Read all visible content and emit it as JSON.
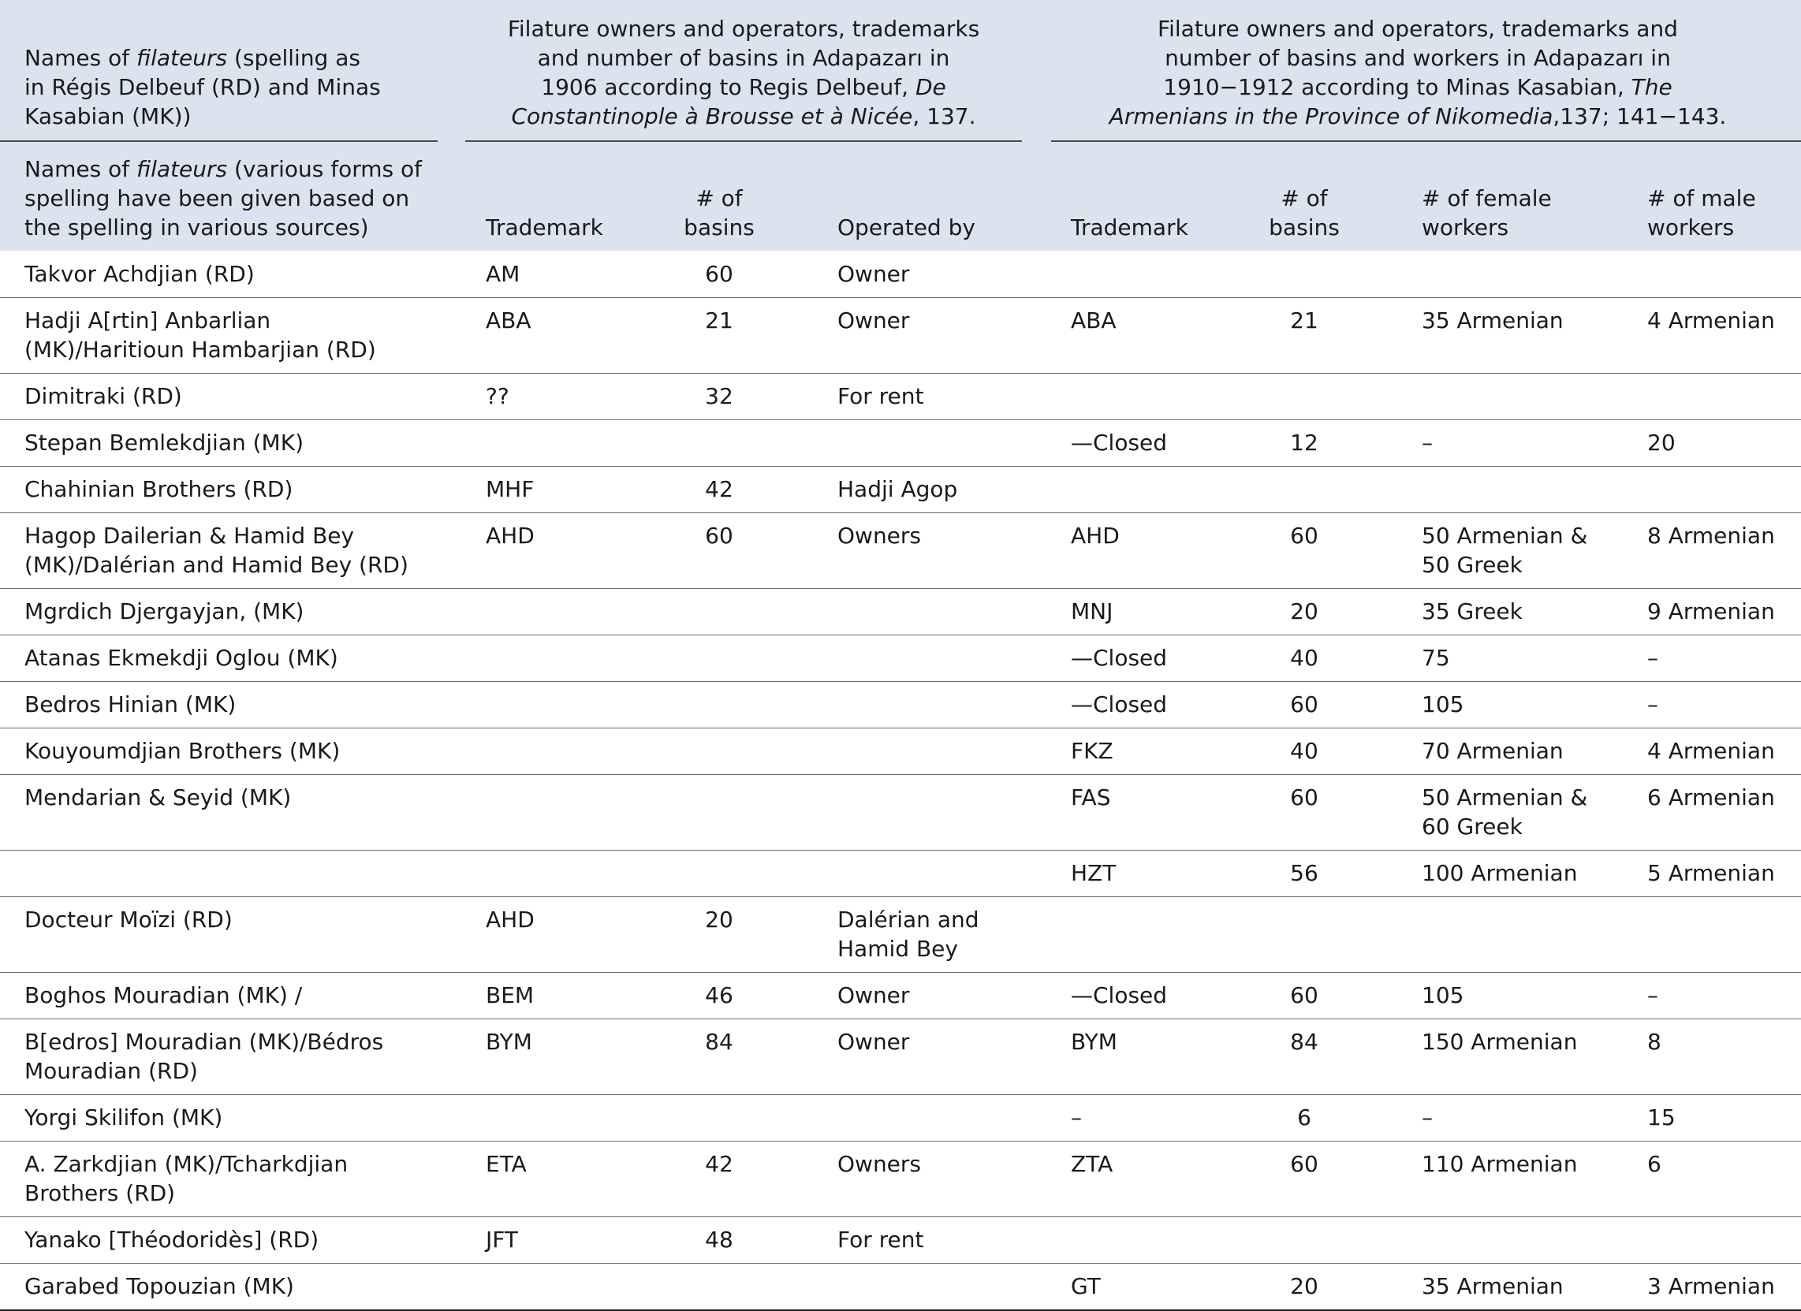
{
  "header": {
    "group1_line1_pre": "Names of ",
    "group1_line1_it": "filateurs",
    "group1_line1_post": " (spelling as",
    "group1_line2": "in Régis Delbeuf (RD) and Minas",
    "group1_line3": "Kasabian (MK))",
    "group2_line1": "Filature owners and operators, trademarks",
    "group2_line2": "and number of basins in Adapazarı in",
    "group2_line3_pre": "1906 according to Regis Delbeuf, ",
    "group2_line3_it": "De",
    "group2_line4_it": "Constantinople à Brousse et à Nicée",
    "group2_line4_post": ", 137.",
    "group3_line1": "Filature owners and operators, trademarks and",
    "group3_line2": "number of basins and workers in Adapazarı in",
    "group3_line3_pre": "1910−1912 according to Minas Kasabian, ",
    "group3_line3_it": "The",
    "group3_line4_it": "Armenians in the Province of Nikomedia",
    "group3_line4_post": ",137; 141−143.",
    "sub_name_line1_pre": "Names of ",
    "sub_name_line1_it": "filateurs",
    "sub_name_line1_post": " (various forms of",
    "sub_name_line2": "spelling have been given based on",
    "sub_name_line3": "the spelling in various sources)",
    "sub_trademark": "Trademark",
    "sub_basins_line1": "# of",
    "sub_basins_line2": "basins",
    "sub_operated": "Operated by",
    "sub_trademark2": "Trademark",
    "sub_basins2_line1": "# of",
    "sub_basins2_line2": "basins",
    "sub_female_line1": "# of female",
    "sub_female_line2": "workers",
    "sub_male_line1": "# of male",
    "sub_male_line2": "workers"
  },
  "rows": [
    {
      "name": [
        "Takvor Achdjian (RD)"
      ],
      "tm1": "AM",
      "b1": "60",
      "op": [
        "Owner"
      ],
      "tm2": "",
      "b2": "",
      "female": [
        ""
      ],
      "male": ""
    },
    {
      "name": [
        "Hadji A[rtin] Anbarlian",
        "(MK)/Haritioun Hambarjian (RD)"
      ],
      "tm1": "ABA",
      "b1": "21",
      "op": [
        "Owner"
      ],
      "tm2": "ABA",
      "b2": "21",
      "female": [
        "35 Armenian"
      ],
      "male": "4 Armenian"
    },
    {
      "name": [
        "Dimitraki (RD)"
      ],
      "tm1": "??",
      "b1": "32",
      "op": [
        "For rent"
      ],
      "tm2": "",
      "b2": "",
      "female": [
        ""
      ],
      "male": ""
    },
    {
      "name": [
        "Stepan Bemlekdjian (MK)"
      ],
      "tm1": "",
      "b1": "",
      "op": [
        ""
      ],
      "tm2": "—Closed",
      "b2": "12",
      "female": [
        "–"
      ],
      "male": "20"
    },
    {
      "name": [
        "Chahinian Brothers (RD)"
      ],
      "tm1": "MHF",
      "b1": "42",
      "op": [
        "Hadji Agop"
      ],
      "tm2": "",
      "b2": "",
      "female": [
        ""
      ],
      "male": ""
    },
    {
      "name": [
        "Hagop Dailerian & Hamid Bey",
        "(MK)/Dalérian and Hamid Bey (RD)"
      ],
      "tm1": "AHD",
      "b1": "60",
      "op": [
        "Owners"
      ],
      "tm2": "AHD",
      "b2": "60",
      "female": [
        "50 Armenian &",
        "50 Greek"
      ],
      "male": "8 Armenian"
    },
    {
      "name": [
        "Mgrdich Djergayjan, (MK)"
      ],
      "tm1": "",
      "b1": "",
      "op": [
        ""
      ],
      "tm2": "MNJ",
      "b2": "20",
      "female": [
        "35 Greek"
      ],
      "male": "9 Armenian"
    },
    {
      "name": [
        "Atanas Ekmekdji Oglou (MK)"
      ],
      "tm1": "",
      "b1": "",
      "op": [
        ""
      ],
      "tm2": "—Closed",
      "b2": "40",
      "female": [
        "75"
      ],
      "male": "–"
    },
    {
      "name": [
        "Bedros Hinian (MK)"
      ],
      "tm1": "",
      "b1": "",
      "op": [
        ""
      ],
      "tm2": "—Closed",
      "b2": "60",
      "female": [
        "105"
      ],
      "male": "–"
    },
    {
      "name": [
        "Kouyoumdjian Brothers (MK)"
      ],
      "tm1": "",
      "b1": "",
      "op": [
        ""
      ],
      "tm2": "FKZ",
      "b2": "40",
      "female": [
        "70 Armenian"
      ],
      "male": "4 Armenian"
    },
    {
      "name": [
        "Mendarian & Seyid (MK)"
      ],
      "tm1": "",
      "b1": "",
      "op": [
        ""
      ],
      "tm2": "FAS",
      "b2": "60",
      "female": [
        "50 Armenian &",
        "60 Greek"
      ],
      "male": "6 Armenian"
    },
    {
      "name": [
        ""
      ],
      "tm1": "",
      "b1": "",
      "op": [
        ""
      ],
      "tm2": "HZT",
      "b2": "56",
      "female": [
        "100 Armenian"
      ],
      "male": "5 Armenian"
    },
    {
      "name": [
        "Docteur Moïzi (RD)"
      ],
      "tm1": "AHD",
      "b1": "20",
      "op": [
        "Dalérian and",
        "Hamid Bey"
      ],
      "tm2": "",
      "b2": "",
      "female": [
        ""
      ],
      "male": ""
    },
    {
      "name": [
        "Boghos Mouradian (MK) /"
      ],
      "tm1": "BEM",
      "b1": "46",
      "op": [
        "Owner"
      ],
      "tm2": "—Closed",
      "b2": "60",
      "female": [
        "105"
      ],
      "male": "–"
    },
    {
      "name": [
        "B[edros] Mouradian (MK)/Bédros",
        "Mouradian (RD)"
      ],
      "tm1": "BYM",
      "b1": "84",
      "op": [
        "Owner"
      ],
      "tm2": "BYM",
      "b2": "84",
      "female": [
        "150 Armenian"
      ],
      "male": "8"
    },
    {
      "name": [
        "Yorgi Skilifon (MK)"
      ],
      "tm1": "",
      "b1": "",
      "op": [
        ""
      ],
      "tm2": "–",
      "b2": "6",
      "female": [
        "–"
      ],
      "male": "15"
    },
    {
      "name": [
        "A. Zarkdjian (MK)/Tcharkdjian",
        "Brothers (RD)"
      ],
      "tm1": "ETA",
      "b1": "42",
      "op": [
        "Owners"
      ],
      "tm2": "ZTA",
      "b2": "60",
      "female": [
        "110 Armenian"
      ],
      "male": "6"
    },
    {
      "name": [
        "Yanako [Théodoridès] (RD)"
      ],
      "tm1": "JFT",
      "b1": "48",
      "op": [
        "For rent"
      ],
      "tm2": "",
      "b2": "",
      "female": [
        ""
      ],
      "male": ""
    },
    {
      "name": [
        "Garabed Topouzian (MK)"
      ],
      "tm1": "",
      "b1": "",
      "op": [
        ""
      ],
      "tm2": "GT",
      "b2": "20",
      "female": [
        "35 Armenian"
      ],
      "male": "3 Armenian"
    }
  ]
}
